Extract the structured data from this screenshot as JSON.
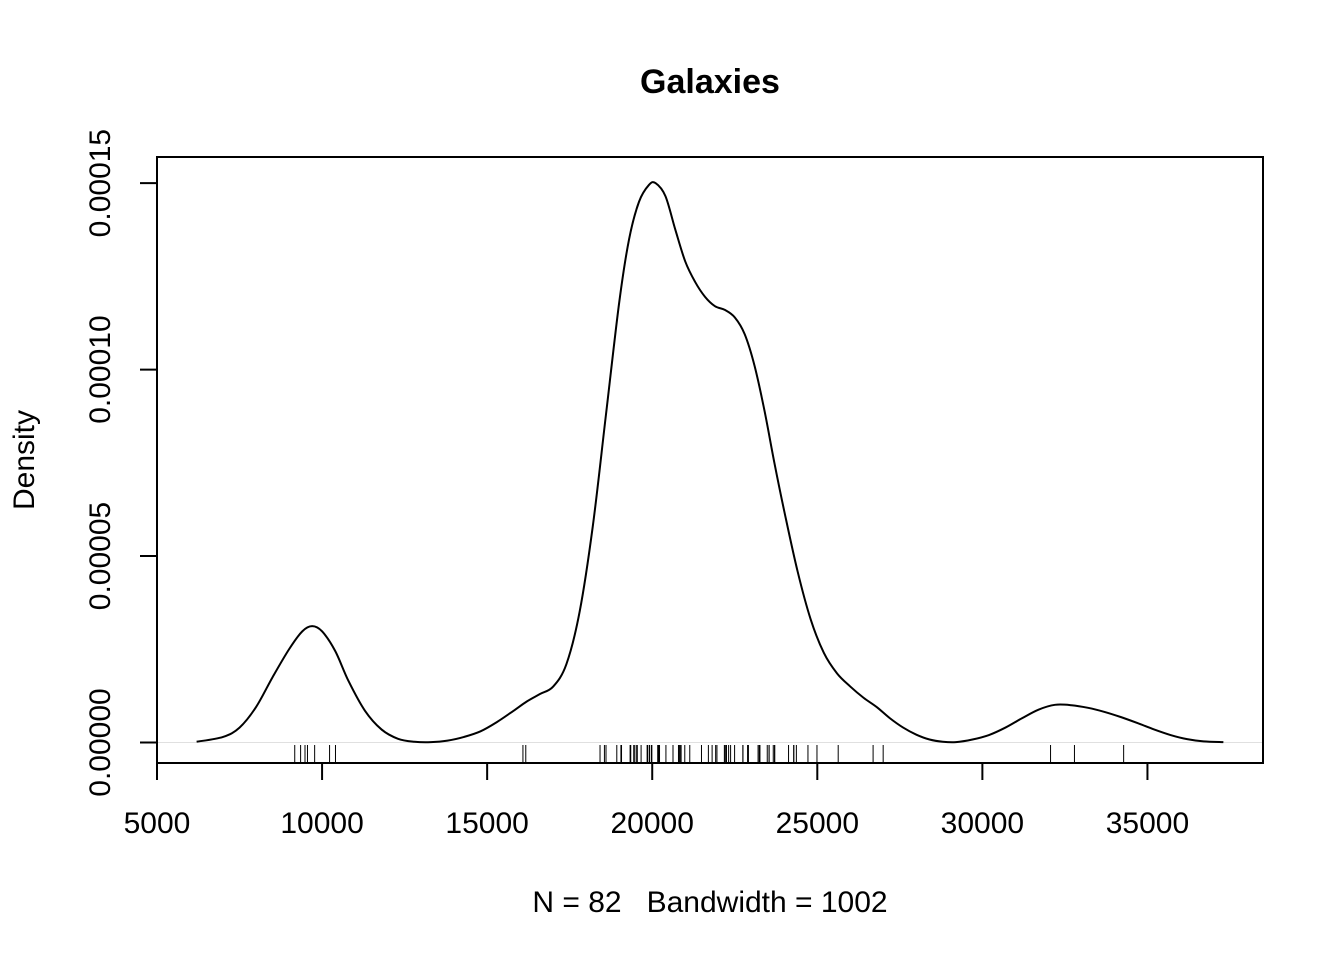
{
  "chart_data": {
    "type": "line",
    "title": "Galaxies",
    "xlabel": "N = 82   Bandwidth = 1002",
    "ylabel": "Density",
    "xlim": [
      5000,
      38500
    ],
    "ylim": [
      -5.5e-06,
      0.000157
    ],
    "x_ticks": [
      "5000",
      "10000",
      "15000",
      "20000",
      "25000",
      "30000",
      "35000"
    ],
    "y_ticks": [
      "0.00000",
      "0.00005",
      "0.00010",
      "0.00015"
    ],
    "grid": false,
    "legend": "none",
    "line_color": "#000000",
    "series": [
      {
        "x": [
          6200,
          7000,
          7500,
          8000,
          8500,
          9000,
          9400,
          9700,
          10000,
          10400,
          10800,
          11300,
          11800,
          12300,
          12800,
          13300,
          13800,
          14300,
          14800,
          15300,
          15800,
          16200,
          16600,
          17000,
          17400,
          17800,
          18200,
          18600,
          19000,
          19300,
          19600,
          19900,
          20100,
          20400,
          20700,
          21000,
          21300,
          21600,
          21900,
          22200,
          22500,
          22800,
          23100,
          23400,
          23700,
          24000,
          24400,
          24800,
          25200,
          25600,
          26000,
          26400,
          26800,
          27200,
          27600,
          28000,
          28400,
          28800,
          29200,
          29700,
          30200,
          30700,
          31200,
          31700,
          32200,
          32700,
          33200,
          33700,
          34200,
          34700,
          35200,
          35700,
          36200,
          36700,
          37300
        ],
        "y": [
          2e-07,
          1.5e-06,
          4e-06,
          9.5e-06,
          1.75e-05,
          2.5e-05,
          2.98e-05,
          3.12e-05,
          2.98e-05,
          2.45e-05,
          1.65e-05,
          8.5e-06,
          3.5e-06,
          1e-06,
          2e-07,
          1e-07,
          5e-07,
          1.5e-06,
          3e-06,
          5.5e-06,
          8.5e-06,
          1.1e-05,
          1.3e-05,
          1.5e-05,
          2.1e-05,
          3.5e-05,
          5.8e-05,
          8.8e-05,
          0.000118,
          0.000135,
          0.000145,
          0.0001495,
          0.00015,
          0.0001465,
          0.0001375,
          0.000129,
          0.0001235,
          0.0001195,
          0.000117,
          0.000116,
          0.000114,
          0.0001095,
          0.000101,
          8.9e-05,
          7.5e-05,
          6.2e-05,
          4.6e-05,
          3.3e-05,
          2.4e-05,
          1.85e-05,
          1.5e-05,
          1.2e-05,
          9.5e-06,
          6.5e-06,
          4e-06,
          2.1e-06,
          8e-07,
          2e-07,
          1e-07,
          8e-07,
          2e-06,
          4e-06,
          6.5e-06,
          8.8e-06,
          1.01e-05,
          1e-05,
          9.3e-06,
          8.2e-06,
          6.8e-06,
          5.2e-06,
          3.5e-06,
          2e-06,
          9e-07,
          3e-07,
          1e-07
        ]
      }
    ],
    "rug": [
      9172,
      9350,
      9483,
      9558,
      9775,
      10227,
      10406,
      16084,
      16170,
      18419,
      18552,
      18600,
      18927,
      19052,
      19070,
      19330,
      19343,
      19349,
      19440,
      19473,
      19529,
      19541,
      19547,
      19663,
      19846,
      19856,
      19863,
      19914,
      19918,
      19973,
      19989,
      20166,
      20175,
      20179,
      20196,
      20215,
      20221,
      20415,
      20629,
      20795,
      20821,
      20846,
      20875,
      20986,
      21137,
      21492,
      21701,
      21814,
      21921,
      21960,
      22185,
      22209,
      22242,
      22249,
      22314,
      22374,
      22495,
      22746,
      22747,
      22888,
      22914,
      23206,
      23241,
      23263,
      23484,
      23538,
      23542,
      23666,
      23706,
      23711,
      24129,
      24285,
      24289,
      24366,
      24717,
      24990,
      25633,
      26690,
      26995,
      32065,
      32789,
      34279
    ]
  }
}
